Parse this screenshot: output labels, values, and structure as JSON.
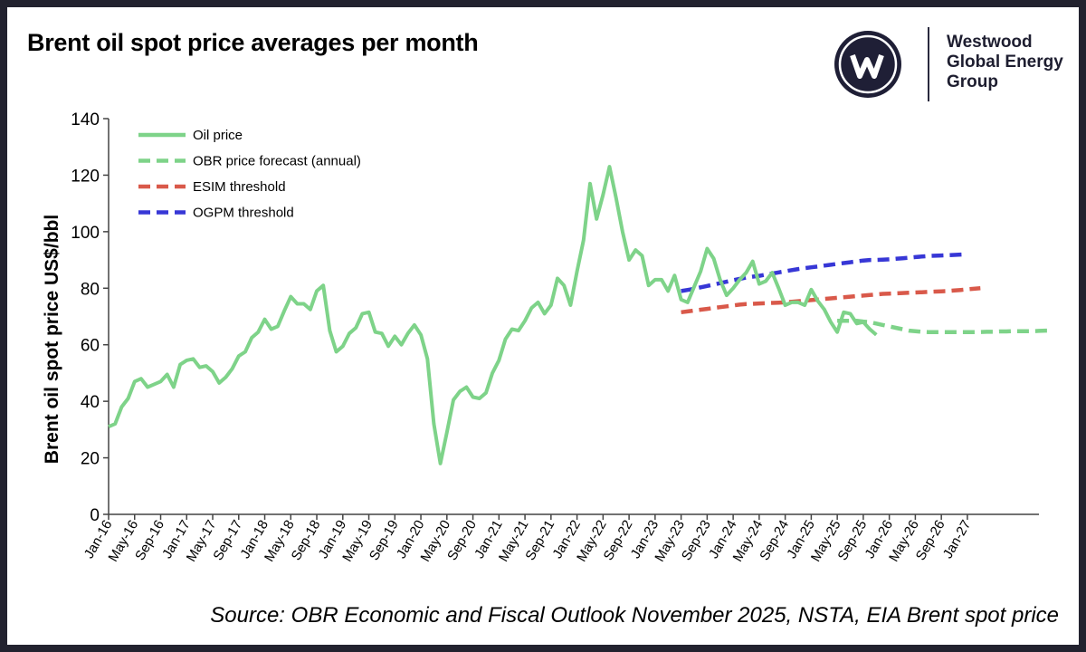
{
  "title": "Brent oil spot price averages per month",
  "logo": {
    "icon": "westwood-w-logo-icon",
    "lines": [
      "Westwood",
      "Global Energy",
      "Group"
    ]
  },
  "source": "Source: OBR Economic and Fiscal Outlook November 2025, NSTA, EIA Brent spot price",
  "chart_data": {
    "type": "line",
    "ylabel": "Brent oil spot price US$/bbl",
    "ylim": [
      0,
      140
    ],
    "yticks": [
      0,
      20,
      40,
      60,
      80,
      100,
      120,
      140
    ],
    "x_start": "Jan-16",
    "x_end_label": "Jan-27",
    "x_tick_labels": [
      "Jan-16",
      "May-16",
      "Sep-16",
      "Jan-17",
      "May-17",
      "Sep-17",
      "Jan-18",
      "May-18",
      "Sep-18",
      "Jan-19",
      "May-19",
      "Sep-19",
      "Jan-20",
      "May-20",
      "Sep-20",
      "Jan-21",
      "May-21",
      "Sep-21",
      "Jan-22",
      "May-22",
      "Sep-22",
      "Jan-23",
      "May-23",
      "Sep-23",
      "Jan-24",
      "May-24",
      "Sep-24",
      "Jan-25",
      "May-25",
      "Sep-25",
      "Jan-26",
      "May-26",
      "Sep-26",
      "Jan-27"
    ],
    "legend_position": "top-left",
    "grid": false,
    "series": [
      {
        "name": "Oil price",
        "color": "#7ed389",
        "style": "solid",
        "start": "Jan-16",
        "values": [
          31,
          32,
          38,
          41,
          47,
          48,
          45,
          46,
          47,
          49.5,
          45,
          53,
          54.5,
          55,
          52,
          52.5,
          50.5,
          46.5,
          48.5,
          51.5,
          56,
          57.5,
          62.5,
          64.5,
          69,
          65.5,
          66.5,
          72,
          77,
          74.5,
          74.5,
          72.5,
          79,
          81,
          65,
          57.5,
          59.5,
          64,
          66,
          71,
          71.5,
          64.5,
          64,
          59.5,
          63,
          60,
          64,
          67,
          63.5,
          55,
          32,
          18,
          29,
          40.5,
          43.5,
          45,
          41.5,
          41,
          43,
          50,
          54.5,
          62,
          65.5,
          65,
          68.5,
          73,
          75,
          71,
          74,
          83.5,
          81,
          74,
          86,
          97,
          117,
          104.5,
          113,
          123,
          112,
          100,
          90,
          93.5,
          91.5,
          81,
          83,
          83,
          79,
          84.5,
          76,
          75,
          80.5,
          86,
          94,
          90.5,
          83,
          77.5,
          80,
          83,
          85.5,
          89.5,
          81.5,
          82.5,
          85.5,
          80,
          74,
          75,
          75,
          74,
          79.5,
          75.5,
          72.5,
          68,
          64.5,
          71.5,
          71,
          67.5,
          68,
          65.5,
          63.5
        ]
      },
      {
        "name": "OBR price forecast (annual)",
        "color": "#7ed389",
        "style": "dashed",
        "start": "May-25",
        "values": [
          68.5,
          68.5,
          68.5,
          68.5,
          68.2,
          68,
          67.5,
          67,
          66.5,
          66,
          65.5,
          65,
          64.8,
          64.6,
          64.5,
          64.5,
          64.5,
          64.5,
          64.5,
          64.5,
          64.5,
          64.5,
          64.5,
          64.6,
          64.6,
          64.7,
          64.7,
          64.8,
          64.8,
          64.8,
          64.8,
          64.9,
          65,
          65
        ]
      },
      {
        "name": "ESIM threshold",
        "color": "#d9594a",
        "style": "dashed",
        "start": "May-23",
        "values": [
          71.5,
          71.8,
          72.1,
          72.4,
          72.7,
          73,
          73.3,
          73.6,
          73.9,
          74.2,
          74.4,
          74.5,
          74.6,
          74.7,
          74.8,
          74.9,
          75,
          75.2,
          75.4,
          75.6,
          75.8,
          76,
          76.2,
          76.4,
          76.6,
          76.8,
          77,
          77.2,
          77.4,
          77.6,
          77.8,
          78,
          78.1,
          78.2,
          78.3,
          78.4,
          78.5,
          78.6,
          78.7,
          78.8,
          78.9,
          79,
          79.2,
          79.4,
          79.6,
          79.8,
          80
        ]
      },
      {
        "name": "OGPM threshold",
        "color": "#3737d6",
        "style": "dashed",
        "start": "May-23",
        "values": [
          79,
          79.4,
          79.8,
          80.3,
          80.8,
          81.3,
          81.8,
          82.3,
          82.8,
          83.3,
          83.8,
          84.1,
          84.4,
          84.8,
          85.2,
          85.6,
          86,
          86.4,
          86.8,
          87.1,
          87.4,
          87.7,
          88,
          88.3,
          88.6,
          88.9,
          89.2,
          89.5,
          89.8,
          90,
          90,
          90.1,
          90.2,
          90.4,
          90.6,
          90.8,
          91,
          91.2,
          91.4,
          91.5,
          91.6,
          91.7,
          91.8,
          91.9,
          92
        ]
      }
    ]
  }
}
